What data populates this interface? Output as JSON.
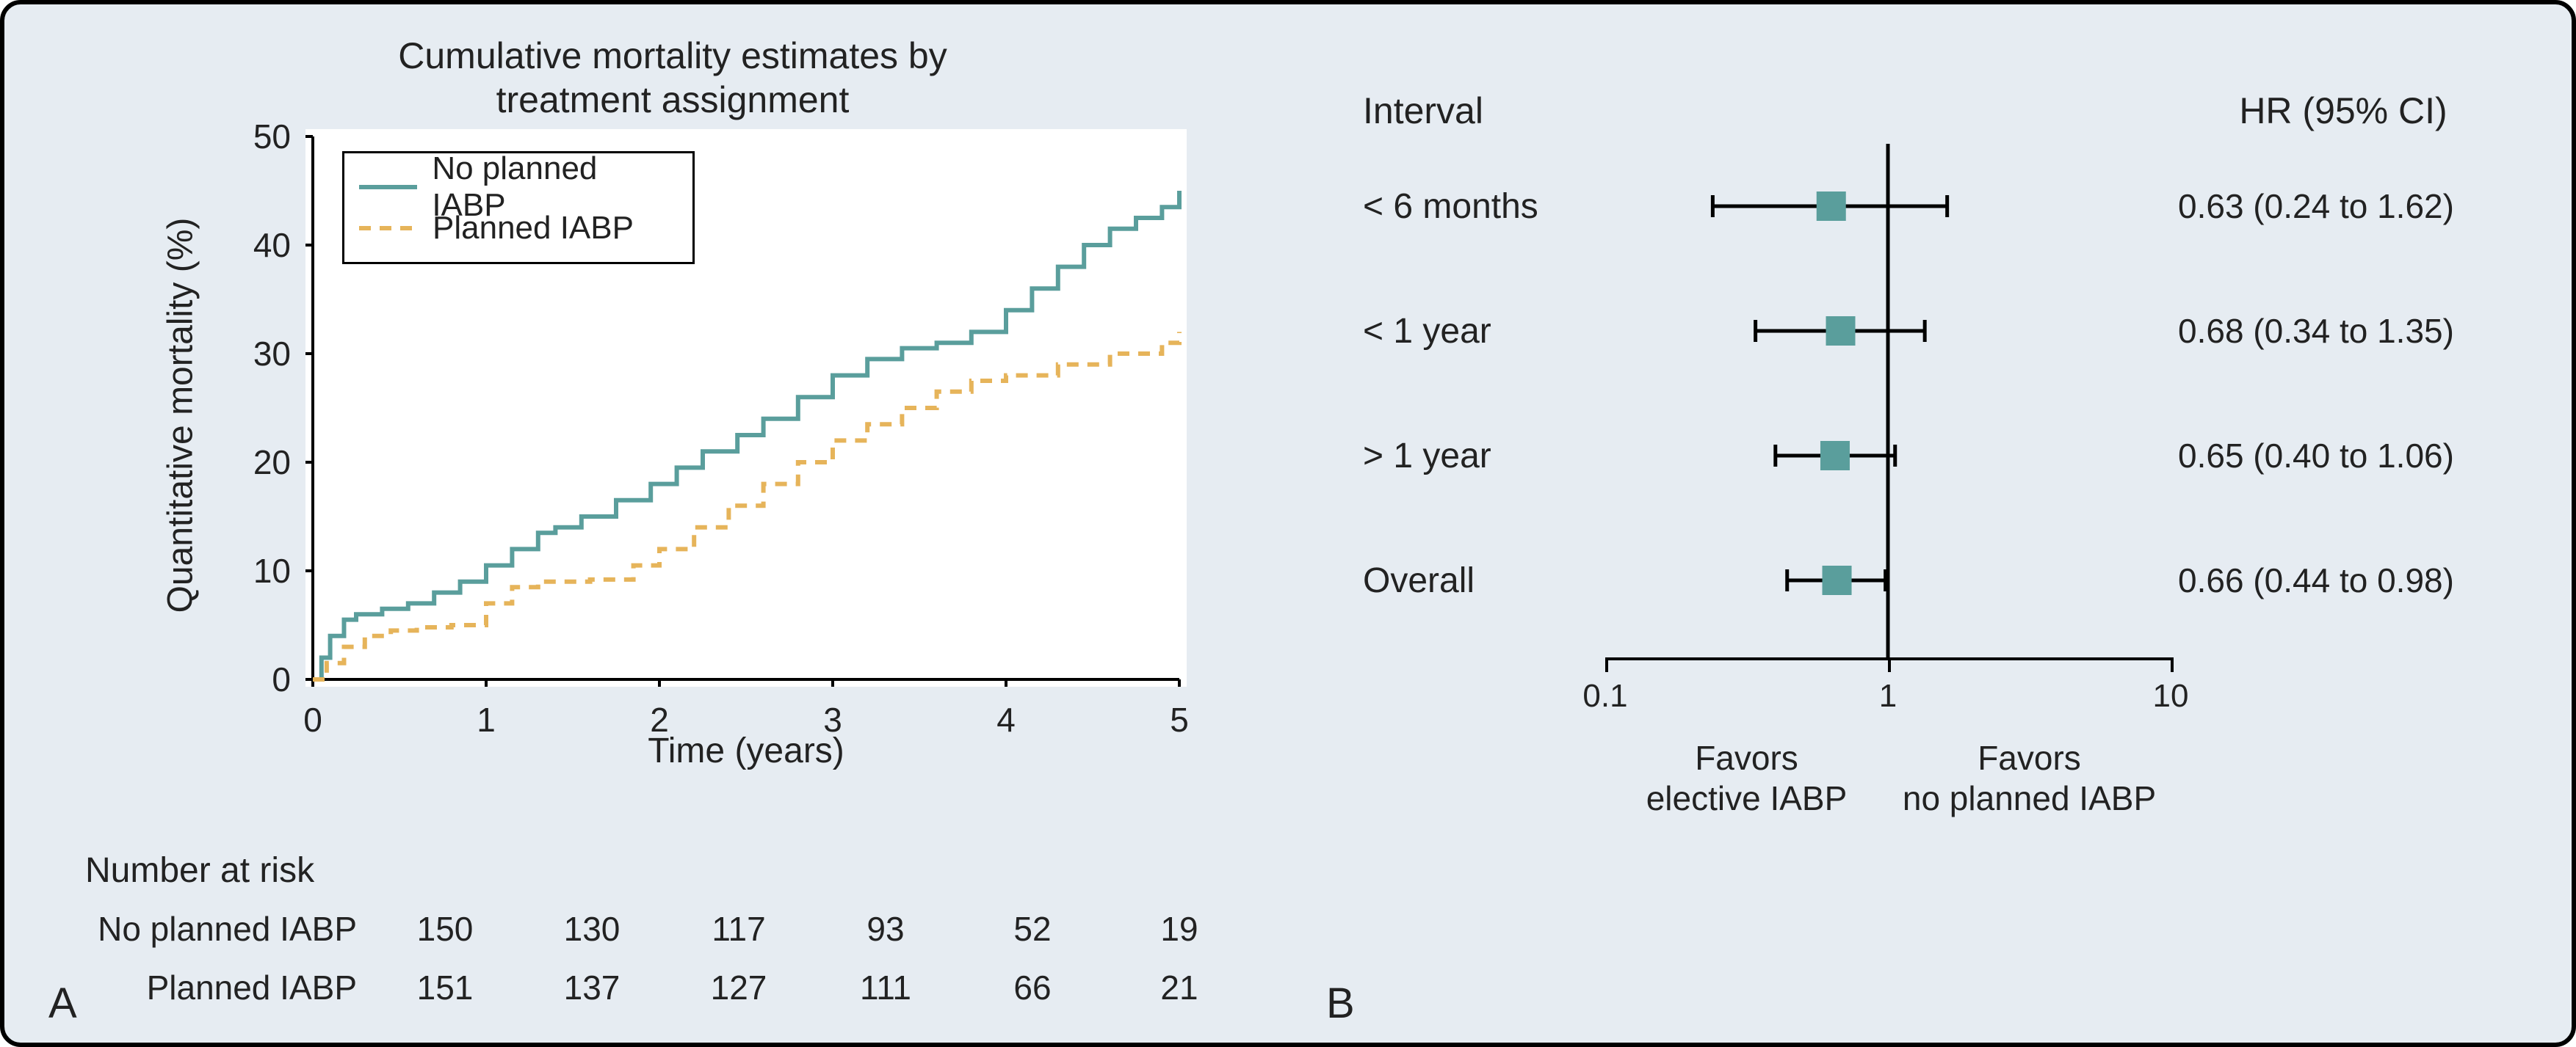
{
  "colors": {
    "background": "#e6ecf2",
    "plot_bg": "#ffffff",
    "text": "#222222",
    "line_no_planned": "#5a9e9c",
    "line_planned": "#e6b45a",
    "forest_marker": "#5a9e9c",
    "axis": "#000000"
  },
  "panelA": {
    "label": "A",
    "title_l1": "Cumulative mortality estimates by",
    "title_l2": "treatment assignment",
    "ylab": "Quantitative mortality (%)",
    "xlab": "Time (years)",
    "xlim": [
      0,
      5
    ],
    "ylim": [
      0,
      50
    ],
    "xticks": [
      0,
      1,
      2,
      3,
      4,
      5
    ],
    "yticks": [
      0,
      10,
      20,
      30,
      40,
      50
    ],
    "legend_no": "No planned IABP",
    "legend_yes": "Planned IABP",
    "series": {
      "no_planned": [
        [
          0.0,
          0
        ],
        [
          0.05,
          2
        ],
        [
          0.1,
          4
        ],
        [
          0.18,
          5.5
        ],
        [
          0.25,
          6
        ],
        [
          0.4,
          6.5
        ],
        [
          0.55,
          7
        ],
        [
          0.7,
          8
        ],
        [
          0.85,
          9
        ],
        [
          1.0,
          10.5
        ],
        [
          1.15,
          12
        ],
        [
          1.3,
          13.5
        ],
        [
          1.4,
          14
        ],
        [
          1.55,
          15
        ],
        [
          1.75,
          16.5
        ],
        [
          1.95,
          18
        ],
        [
          2.1,
          19.5
        ],
        [
          2.25,
          21
        ],
        [
          2.45,
          22.5
        ],
        [
          2.6,
          24
        ],
        [
          2.8,
          26
        ],
        [
          3.0,
          28
        ],
        [
          3.2,
          29.5
        ],
        [
          3.4,
          30.5
        ],
        [
          3.6,
          31
        ],
        [
          3.8,
          32
        ],
        [
          4.0,
          34
        ],
        [
          4.15,
          36
        ],
        [
          4.3,
          38
        ],
        [
          4.45,
          40
        ],
        [
          4.6,
          41.5
        ],
        [
          4.75,
          42.5
        ],
        [
          4.9,
          43.5
        ],
        [
          5.0,
          45
        ]
      ],
      "planned": [
        [
          0.0,
          0
        ],
        [
          0.08,
          1.5
        ],
        [
          0.18,
          3
        ],
        [
          0.3,
          4
        ],
        [
          0.45,
          4.5
        ],
        [
          0.6,
          4.8
        ],
        [
          0.8,
          5
        ],
        [
          1.0,
          7
        ],
        [
          1.15,
          8.5
        ],
        [
          1.3,
          9
        ],
        [
          1.6,
          9.2
        ],
        [
          1.85,
          10.5
        ],
        [
          2.0,
          12
        ],
        [
          2.2,
          14
        ],
        [
          2.4,
          16
        ],
        [
          2.6,
          18
        ],
        [
          2.8,
          20
        ],
        [
          3.0,
          22
        ],
        [
          3.2,
          23.5
        ],
        [
          3.4,
          25
        ],
        [
          3.6,
          26.5
        ],
        [
          3.8,
          27.5
        ],
        [
          4.0,
          28
        ],
        [
          4.3,
          29
        ],
        [
          4.6,
          30
        ],
        [
          4.9,
          31
        ],
        [
          5.0,
          32
        ]
      ]
    },
    "risk_header": "Number at risk",
    "risk_no_planned_label": "No planned IABP",
    "risk_planned_label": "Planned IABP",
    "risk_no_planned": [
      "150",
      "130",
      "117",
      "93",
      "52",
      "19"
    ],
    "risk_planned": [
      "151",
      "137",
      "127",
      "111",
      "66",
      "21"
    ],
    "line_width": 6,
    "dash_pattern": "16 12",
    "title_fontsize": 50,
    "label_fontsize": 48,
    "tick_fontsize": 46
  },
  "panelB": {
    "label": "B",
    "header_interval": "Interval",
    "header_hr": "HR (95% CI)",
    "xscale": "log",
    "xticks": [
      0.1,
      1,
      10
    ],
    "xtick_labels": [
      "0.1",
      "1",
      "10"
    ],
    "xlab_left_l1": "Favors",
    "xlab_left_l2": "elective IABP",
    "xlab_right_l1": "Favors",
    "xlab_right_l2": "no planned IABP",
    "marker_size": 40,
    "line_width": 5,
    "rows": [
      {
        "label": "< 6 months",
        "hr": 0.63,
        "lo": 0.24,
        "hi": 1.62,
        "text": "0.63 (0.24 to 1.62)"
      },
      {
        "label": "< 1 year",
        "hr": 0.68,
        "lo": 0.34,
        "hi": 1.35,
        "text": "0.68 (0.34 to 1.35)"
      },
      {
        "label": "> 1 year",
        "hr": 0.65,
        "lo": 0.4,
        "hi": 1.06,
        "text": "0.65 (0.40 to 1.06)"
      },
      {
        "label": "Overall",
        "hr": 0.66,
        "lo": 0.44,
        "hi": 0.98,
        "text": "0.66 (0.44 to 0.98)"
      }
    ]
  }
}
